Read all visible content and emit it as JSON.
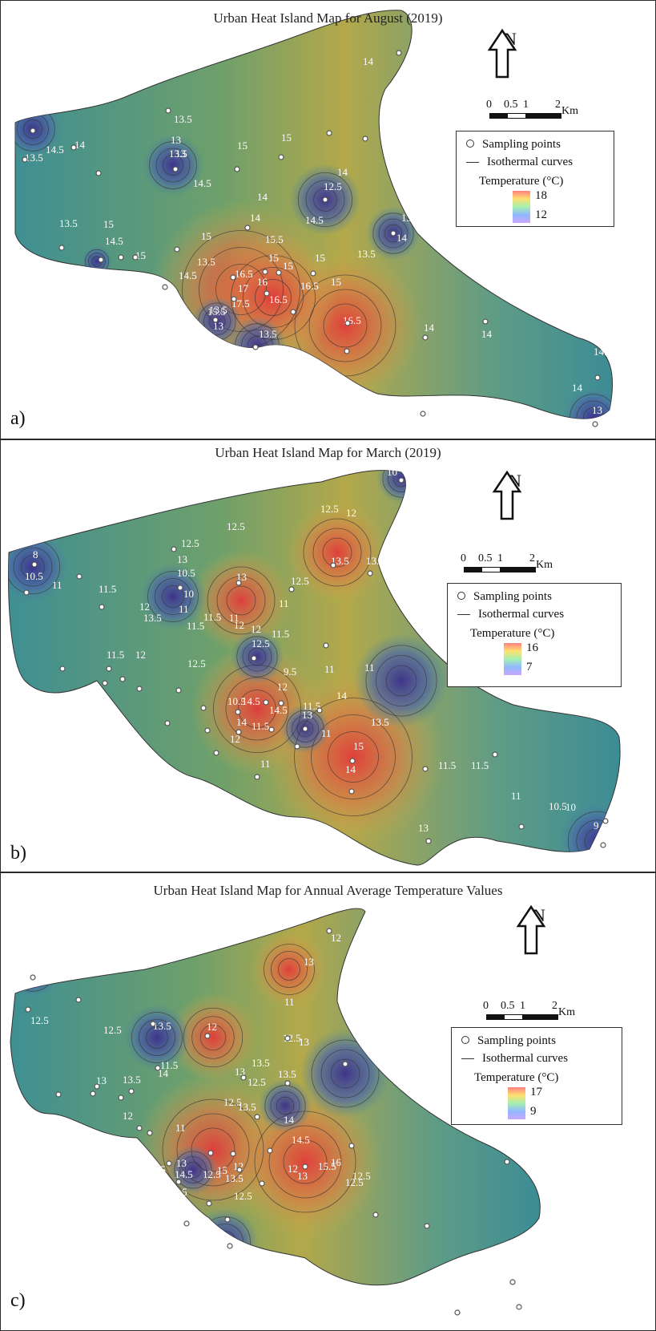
{
  "panels": [
    {
      "id": "a",
      "title": "Urban Heat Island Map for August (2019)",
      "label": "a)",
      "legend": {
        "sampling": "Sampling points",
        "iso": "Isothermal curves",
        "temp": "Temperature (°C)",
        "max": "18",
        "min": "12"
      },
      "scale": {
        "ticks": [
          "0",
          "0.5",
          "1",
          "2"
        ],
        "unit": "Km"
      },
      "north": "N",
      "isotherm_labels": [
        "14",
        "13.5",
        "14.5",
        "14",
        "13.5",
        "13",
        "13.5",
        "15",
        "15",
        "13",
        "12.5",
        "14",
        "14.5",
        "14",
        "14",
        "14.5",
        "13.5",
        "14",
        "13.5",
        "13.5",
        "15",
        "14.5",
        "15",
        "15",
        "13.5",
        "15.5",
        "15",
        "15",
        "15",
        "15",
        "16.5",
        "16",
        "17",
        "16.5",
        "16.5",
        "17.5",
        "15.5",
        "13.5",
        "13",
        "16.5",
        "13.5",
        "14",
        "14",
        "14.5",
        "14",
        "13",
        "14.5"
      ]
    },
    {
      "id": "b",
      "title": "Urban Heat Island Map for March (2019)",
      "label": "b)",
      "legend": {
        "sampling": "Sampling points",
        "iso": "Isothermal curves",
        "temp": "Temperature (°C)",
        "max": "16",
        "min": "7"
      },
      "scale": {
        "ticks": [
          "0",
          "0.5",
          "1",
          "2"
        ],
        "unit": "Km"
      },
      "north": "N",
      "isotherm_labels": [
        "10",
        "12.5",
        "12",
        "12.5",
        "12.5",
        "13",
        "13.5",
        "13.5",
        "8",
        "10.5",
        "11",
        "10.5",
        "10",
        "11",
        "11.5",
        "13.5",
        "13",
        "12.5",
        "11",
        "12",
        "11.5",
        "11.5",
        "12",
        "12.5",
        "11.5",
        "12",
        "11",
        "12",
        "11.5",
        "12.5",
        "9.5",
        "11",
        "11",
        "14",
        "12",
        "14.5",
        "14.5",
        "14",
        "11.5",
        "10.5",
        "11.5",
        "11",
        "13",
        "13.5",
        "14",
        "15",
        "12",
        "11",
        "11.5",
        "11.5",
        "11",
        "10.5",
        "10",
        "13",
        "9",
        "8.5"
      ]
    },
    {
      "id": "c",
      "title": "Urban Heat Island Map for Annual Average Temperature Values",
      "label": "c)",
      "legend": {
        "sampling": "Sampling points",
        "iso": "Isothermal curves",
        "temp": "Temperature (°C)",
        "max": "17",
        "min": "9"
      },
      "scale": {
        "ticks": [
          "0",
          "0.5",
          "1",
          "2"
        ],
        "unit": "Km"
      },
      "north": "N",
      "isotherm_labels": [
        "12",
        "13",
        "11",
        "13.5",
        "12.5",
        "12.5",
        "11.5",
        "14",
        "12",
        "11",
        "13",
        "13.5",
        "12",
        "13.5",
        "13",
        "13.5",
        "12.5",
        "13",
        "12.5",
        "12.5",
        "11",
        "13.5",
        "14",
        "14.5",
        "15.5",
        "16",
        "12.5",
        "12.5",
        "12.5",
        "13",
        "14.5",
        "15.5",
        "15",
        "12.5",
        "13.5",
        "12",
        "12.5",
        "12",
        "13"
      ]
    }
  ]
}
